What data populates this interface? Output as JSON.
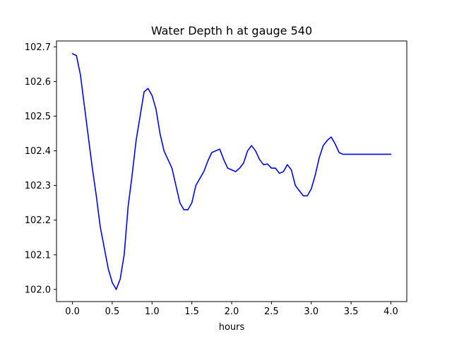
{
  "chart_data": {
    "type": "line",
    "title": "Water Depth h at gauge 540",
    "xlabel": "hours",
    "ylabel": "",
    "xlim": [
      -0.2,
      4.2
    ],
    "ylim": [
      101.965,
      102.717
    ],
    "xticks": [
      0.0,
      0.5,
      1.0,
      1.5,
      2.0,
      2.5,
      3.0,
      3.5,
      4.0
    ],
    "xtick_labels": [
      "0.0",
      "0.5",
      "1.0",
      "1.5",
      "2.0",
      "2.5",
      "3.0",
      "3.5",
      "4.0"
    ],
    "yticks": [
      102.0,
      102.1,
      102.2,
      102.3,
      102.4,
      102.5,
      102.6,
      102.7
    ],
    "ytick_labels": [
      "102.0",
      "102.1",
      "102.2",
      "102.3",
      "102.4",
      "102.5",
      "102.6",
      "102.7"
    ],
    "grid": false,
    "series": [
      {
        "color": "#0000ff",
        "x": [
          0.0,
          0.05,
          0.1,
          0.15,
          0.2,
          0.25,
          0.3,
          0.35,
          0.4,
          0.45,
          0.5,
          0.55,
          0.6,
          0.65,
          0.7,
          0.75,
          0.8,
          0.85,
          0.9,
          0.95,
          1.0,
          1.05,
          1.1,
          1.15,
          1.2,
          1.25,
          1.3,
          1.35,
          1.4,
          1.45,
          1.5,
          1.55,
          1.6,
          1.65,
          1.7,
          1.75,
          1.8,
          1.85,
          1.9,
          1.95,
          2.0,
          2.05,
          2.1,
          2.15,
          2.2,
          2.25,
          2.3,
          2.35,
          2.4,
          2.45,
          2.5,
          2.55,
          2.6,
          2.65,
          2.7,
          2.75,
          2.8,
          2.85,
          2.9,
          2.95,
          3.0,
          3.05,
          3.1,
          3.15,
          3.2,
          3.25,
          3.3,
          3.35,
          3.4,
          3.45,
          3.5,
          3.55,
          3.6,
          3.65,
          3.7,
          3.75,
          3.8,
          3.85,
          3.9,
          3.95,
          4.0
        ],
        "y": [
          102.68,
          102.675,
          102.62,
          102.53,
          102.44,
          102.35,
          102.27,
          102.18,
          102.12,
          102.06,
          102.02,
          102.0,
          102.03,
          102.1,
          102.24,
          102.33,
          102.43,
          102.5,
          102.57,
          102.58,
          102.56,
          102.52,
          102.45,
          102.4,
          102.375,
          102.35,
          102.3,
          102.25,
          102.23,
          102.23,
          102.25,
          102.3,
          102.32,
          102.34,
          102.37,
          102.395,
          102.4,
          102.405,
          102.375,
          102.35,
          102.345,
          102.34,
          102.35,
          102.365,
          102.4,
          102.415,
          102.4,
          102.375,
          102.36,
          102.362,
          102.35,
          102.35,
          102.335,
          102.34,
          102.36,
          102.345,
          102.3,
          102.285,
          102.27,
          102.27,
          102.29,
          102.33,
          102.38,
          102.415,
          102.43,
          102.44,
          102.42,
          102.395,
          102.39,
          102.39,
          102.39,
          102.39,
          102.39,
          102.39,
          102.39,
          102.39,
          102.39,
          102.39,
          102.39,
          102.39,
          102.39
        ]
      }
    ]
  }
}
